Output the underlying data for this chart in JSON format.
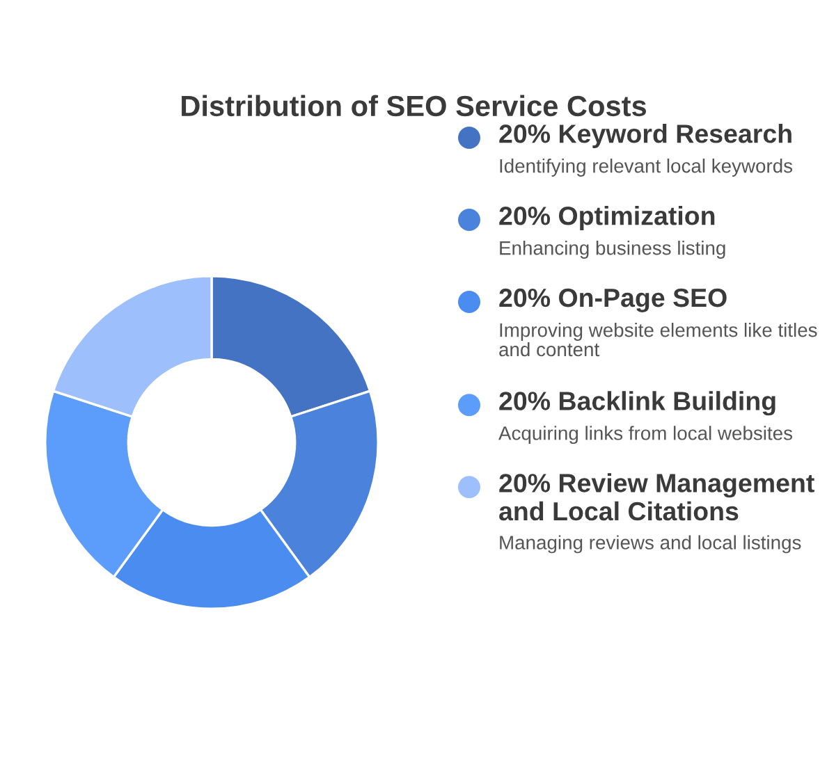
{
  "chart_data": {
    "type": "donut",
    "title": "Distribution of SEO Service Costs",
    "categories": [
      "Keyword Research",
      "Optimization",
      "On-Page SEO",
      "Backlink Building",
      "Review Management and Local Citations"
    ],
    "values": [
      20,
      20,
      20,
      20,
      20
    ],
    "value_labels": [
      "20%",
      "20%",
      "20%",
      "20%",
      "20%"
    ],
    "colors": [
      "#4573c4",
      "#4a82dc",
      "#4b8cf0",
      "#5c9cfa",
      "#9dbffb"
    ],
    "annotations": [
      "Identifying relevant local keywords",
      "Enhancing business listing",
      "Improving website elements like titles and content",
      "Acquiring links from local websites",
      "Managing reviews and local listings"
    ],
    "legend": "right"
  }
}
